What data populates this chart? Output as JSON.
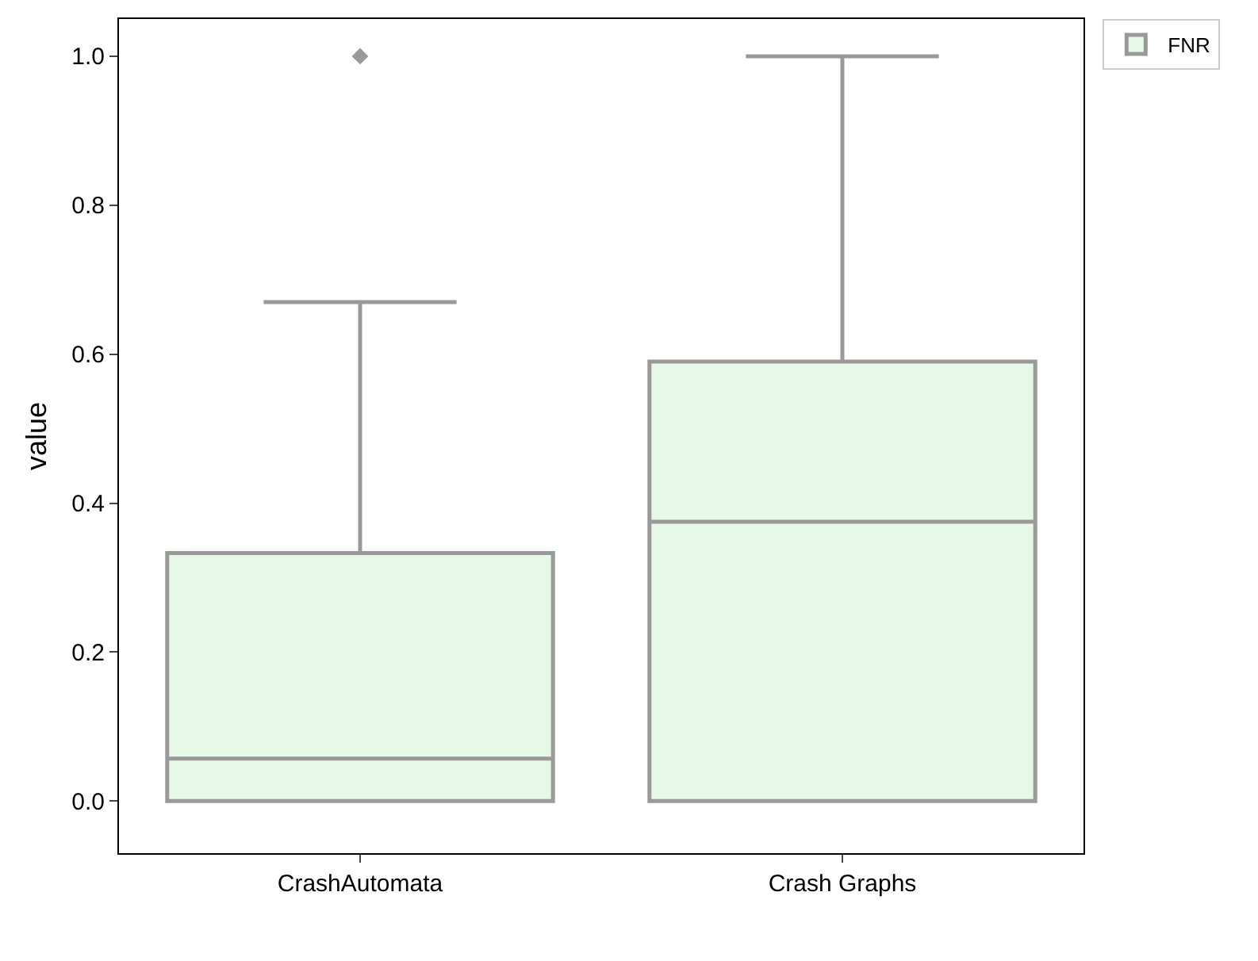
{
  "chart_data": {
    "type": "box",
    "categories": [
      "CrashAutomata",
      "Crash Graphs"
    ],
    "ylabel": "value",
    "ylim": [
      -0.07,
      1.05
    ],
    "yticks": [
      {
        "value": 0,
        "label": "0.0"
      },
      {
        "value": 0.2,
        "label": "0.2"
      },
      {
        "value": 0.4,
        "label": "0.4"
      },
      {
        "value": 0.6,
        "label": "0.6"
      },
      {
        "value": 0.8,
        "label": "0.8"
      },
      {
        "value": 1,
        "label": "1.0"
      }
    ],
    "grid": false,
    "legend": "top right",
    "series": [
      {
        "name": "FNR",
        "color": "#e6f9e6",
        "boxes": [
          {
            "low": 0,
            "q1": 0,
            "median": 0.057,
            "q3": 0.333,
            "high": 0.67,
            "outliers": [
              1.0
            ]
          },
          {
            "low": 0,
            "q1": 0,
            "median": 0.375,
            "q3": 0.59,
            "high": 1.0
          }
        ]
      }
    ]
  }
}
